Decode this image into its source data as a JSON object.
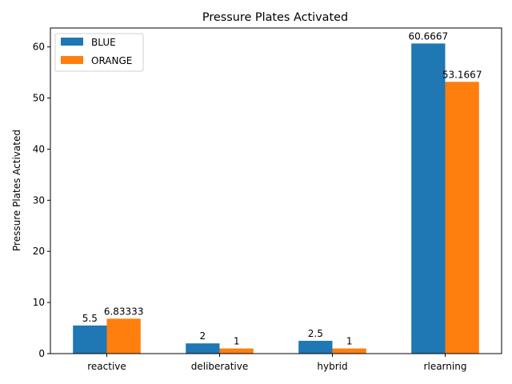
{
  "chart_data": {
    "type": "bar",
    "title": "Pressure Plates Activated",
    "xlabel": "",
    "ylabel": "Pressure Plates Activated",
    "categories": [
      "reactive",
      "deliberative",
      "hybrid",
      "rlearning"
    ],
    "series": [
      {
        "name": "BLUE",
        "color": "#1f77b4",
        "values": [
          5.5,
          2,
          2.5,
          60.6667
        ],
        "labels": [
          "5.5",
          "2",
          "2.5",
          "60.6667"
        ]
      },
      {
        "name": "ORANGE",
        "color": "#ff7f0e",
        "values": [
          6.83333,
          1,
          1,
          53.1667
        ],
        "labels": [
          "6.83333",
          "1",
          "1",
          "53.1667"
        ]
      }
    ],
    "ylim": [
      0,
      63.7
    ],
    "yticks": [
      0,
      10,
      20,
      30,
      40,
      50,
      60
    ],
    "grid": false,
    "legend": "top-left"
  }
}
